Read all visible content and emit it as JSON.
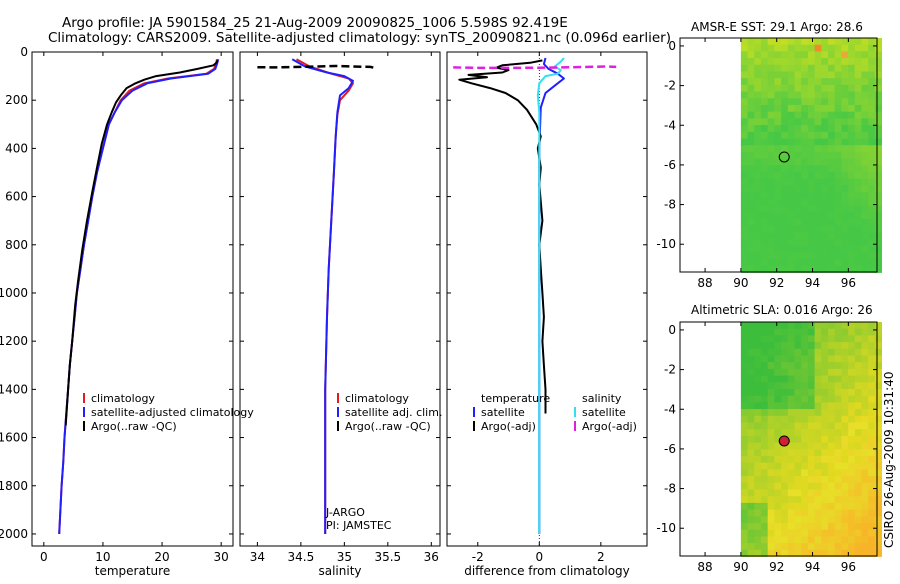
{
  "header": {
    "line1": "Argo profile: JA 5901584_25 21-Aug-2009 20090825_1006 5.598S 92.419E",
    "line2": "Climatology: CARS2009. Satellite-adjusted climatology: synTS_20090821.nc (0.096d earlier)"
  },
  "side_label": "CSIRO 26-Aug-2009 10:31:40",
  "colors": {
    "climatology": "#e41a1c",
    "satellite": "#1f1fff",
    "argo": "#000000",
    "sat_salinity": "#33e0f0",
    "argo_salinity": "#e020e0",
    "marker_fill": "#cc2233"
  },
  "chart_data": [
    {
      "id": "temperature",
      "type": "line",
      "xlabel": "temperature",
      "xlim": [
        -2,
        32
      ],
      "ylim": [
        0,
        2050
      ],
      "xticks": [
        0,
        10,
        20,
        30
      ],
      "xtick_labels": [
        "0",
        "10",
        "20",
        "30"
      ],
      "yticks": [
        0,
        200,
        400,
        600,
        800,
        1000,
        1200,
        1400,
        1600,
        1800,
        2000
      ],
      "ytick_labels": [
        "0",
        "200",
        "400",
        "600",
        "800",
        "1000",
        "1200",
        "1400",
        "1600",
        "1800",
        "2000"
      ],
      "legend": [
        "climatology",
        "satellite-adjusted climatology",
        "Argo(..raw -QC)"
      ],
      "series": [
        {
          "name": "climatology",
          "color": "#e41a1c",
          "dash": "",
          "points": [
            [
              29.3,
              30
            ],
            [
              29.1,
              50
            ],
            [
              28.8,
              70
            ],
            [
              27.5,
              90
            ],
            [
              21,
              110
            ],
            [
              17,
              130
            ],
            [
              14.5,
              160
            ],
            [
              13,
              200
            ],
            [
              12,
              250
            ],
            [
              11,
              300
            ],
            [
              10,
              400
            ],
            [
              9,
              500
            ],
            [
              8.2,
              600
            ],
            [
              7.5,
              700
            ],
            [
              6.8,
              800
            ],
            [
              6.2,
              900
            ],
            [
              5.6,
              1000
            ],
            [
              5.2,
              1100
            ],
            [
              4.8,
              1200
            ],
            [
              4.4,
              1300
            ],
            [
              4.1,
              1400
            ],
            [
              3.8,
              1500
            ],
            [
              3.5,
              1600
            ],
            [
              3.3,
              1700
            ],
            [
              3.0,
              1800
            ],
            [
              2.8,
              1900
            ],
            [
              2.6,
              2000
            ]
          ]
        },
        {
          "name": "satellite-adjusted climatology",
          "color": "#1f1fff",
          "dash": "",
          "points": [
            [
              29.5,
              30
            ],
            [
              29.3,
              50
            ],
            [
              29.0,
              70
            ],
            [
              27.8,
              90
            ],
            [
              21.5,
              110
            ],
            [
              17.5,
              130
            ],
            [
              15,
              160
            ],
            [
              13.2,
              200
            ],
            [
              12,
              250
            ],
            [
              11,
              300
            ],
            [
              10,
              400
            ],
            [
              9,
              500
            ],
            [
              8.2,
              600
            ],
            [
              7.5,
              700
            ],
            [
              6.8,
              800
            ],
            [
              6.2,
              900
            ],
            [
              5.6,
              1000
            ],
            [
              5.2,
              1100
            ],
            [
              4.8,
              1200
            ],
            [
              4.4,
              1300
            ],
            [
              4.1,
              1400
            ],
            [
              3.8,
              1500
            ],
            [
              3.5,
              1600
            ],
            [
              3.3,
              1700
            ],
            [
              3.0,
              1800
            ],
            [
              2.8,
              1900
            ],
            [
              2.6,
              2000
            ]
          ]
        },
        {
          "name": "Argo(..raw -QC)",
          "color": "#000000",
          "dash": "",
          "points": [
            [
              29.4,
              35
            ],
            [
              29.2,
              45
            ],
            [
              28.7,
              55
            ],
            [
              26,
              70
            ],
            [
              23,
              85
            ],
            [
              19,
              100
            ],
            [
              17,
              115
            ],
            [
              15.5,
              130
            ],
            [
              14,
              150
            ],
            [
              13,
              180
            ],
            [
              12.2,
              210
            ],
            [
              11.5,
              250
            ],
            [
              10.7,
              300
            ],
            [
              9.8,
              380
            ],
            [
              9.0,
              480
            ],
            [
              8.2,
              580
            ],
            [
              7.3,
              700
            ],
            [
              6.5,
              820
            ],
            [
              5.8,
              950
            ],
            [
              5.3,
              1050
            ],
            [
              4.8,
              1200
            ],
            [
              4.4,
              1300
            ],
            [
              4.1,
              1400
            ],
            [
              3.7,
              1550
            ]
          ]
        }
      ]
    },
    {
      "id": "salinity",
      "type": "line",
      "xlabel": "salinity",
      "xlim": [
        33.8,
        36.1
      ],
      "ylim": [
        0,
        2050
      ],
      "xticks": [
        34,
        34.5,
        35,
        35.5,
        36
      ],
      "xtick_labels": [
        "34",
        "34.5",
        "35",
        "35.5",
        "36"
      ],
      "legend": [
        "climatology",
        "satellite adj. clim.",
        "Argo(..raw -QC)"
      ],
      "annotations": [
        "J-ARGO",
        "PI: JAMSTEC"
      ],
      "series": [
        {
          "name": "climatology",
          "color": "#e41a1c",
          "dash": "",
          "points": [
            [
              34.45,
              30
            ],
            [
              34.6,
              60
            ],
            [
              34.85,
              90
            ],
            [
              35.05,
              110
            ],
            [
              35.1,
              130
            ],
            [
              35.05,
              160
            ],
            [
              34.95,
              200
            ],
            [
              34.92,
              260
            ],
            [
              34.9,
              350
            ],
            [
              34.88,
              500
            ],
            [
              34.85,
              700
            ],
            [
              34.82,
              900
            ],
            [
              34.8,
              1100
            ],
            [
              34.78,
              1400
            ],
            [
              34.78,
              1700
            ],
            [
              34.78,
              2000
            ]
          ]
        },
        {
          "name": "satellite adj. clim.",
          "color": "#1f1fff",
          "dash": "",
          "points": [
            [
              34.4,
              30
            ],
            [
              34.55,
              60
            ],
            [
              34.8,
              85
            ],
            [
              35.0,
              100
            ],
            [
              35.1,
              120
            ],
            [
              35.05,
              150
            ],
            [
              34.95,
              180
            ],
            [
              34.92,
              250
            ],
            [
              34.9,
              350
            ],
            [
              34.88,
              500
            ],
            [
              34.85,
              700
            ],
            [
              34.82,
              900
            ],
            [
              34.8,
              1100
            ],
            [
              34.78,
              1400
            ],
            [
              34.78,
              1700
            ],
            [
              34.78,
              2000
            ]
          ]
        },
        {
          "name": "Argo(..raw -QC)",
          "color": "#000000",
          "dash": "8,4",
          "points": [
            [
              34.0,
              63
            ],
            [
              34.2,
              64
            ],
            [
              34.5,
              62
            ],
            [
              34.7,
              60
            ],
            [
              34.9,
              58
            ],
            [
              35.1,
              60
            ],
            [
              35.3,
              62
            ],
            [
              35.35,
              66
            ]
          ]
        }
      ]
    },
    {
      "id": "difference",
      "type": "line",
      "xlabel": "difference from climatology",
      "xlim": [
        -3.0,
        3.5
      ],
      "ylim": [
        0,
        2050
      ],
      "xticks": [
        -2,
        0,
        2
      ],
      "xtick_labels": [
        "-2",
        "0",
        "2"
      ],
      "legend_headers": [
        "temperature",
        "salinity"
      ],
      "legend": [
        "satellite",
        "Argo(-adj)",
        "satellite",
        "Argo(-adj)"
      ],
      "series": [
        {
          "name": "temperature satellite",
          "color": "#1f1fff",
          "dash": "",
          "points": [
            [
              0.2,
              25
            ],
            [
              0.15,
              50
            ],
            [
              0.3,
              70
            ],
            [
              0.6,
              90
            ],
            [
              0.8,
              110
            ],
            [
              0.5,
              140
            ],
            [
              0.2,
              170
            ],
            [
              0.05,
              230
            ],
            [
              0,
              400
            ],
            [
              0,
              800
            ],
            [
              0,
              1200
            ],
            [
              0,
              1600
            ],
            [
              0,
              2000
            ]
          ]
        },
        {
          "name": "temperature Argo(-adj)",
          "color": "#000000",
          "dash": "",
          "points": [
            [
              0.1,
              35
            ],
            [
              -0.3,
              45
            ],
            [
              -1.2,
              55
            ],
            [
              -1.4,
              65
            ],
            [
              -1.0,
              75
            ],
            [
              -1.2,
              85
            ],
            [
              -2.3,
              95
            ],
            [
              -1.7,
              105
            ],
            [
              -2.6,
              115
            ],
            [
              -2.2,
              130
            ],
            [
              -1.6,
              150
            ],
            [
              -1.1,
              170
            ],
            [
              -0.7,
              200
            ],
            [
              -0.4,
              240
            ],
            [
              -0.1,
              300
            ],
            [
              0.05,
              350
            ],
            [
              -0.05,
              400
            ],
            [
              0.05,
              480
            ],
            [
              0,
              550
            ],
            [
              0.1,
              700
            ],
            [
              0,
              800
            ],
            [
              0.05,
              900
            ],
            [
              0.1,
              1000
            ],
            [
              0.15,
              1100
            ],
            [
              0.1,
              1200
            ],
            [
              0.15,
              1300
            ],
            [
              0.2,
              1400
            ],
            [
              0.2,
              1500
            ]
          ]
        },
        {
          "name": "salinity satellite",
          "color": "#33e0f0",
          "dash": "",
          "points": [
            [
              0.8,
              25
            ],
            [
              0.7,
              40
            ],
            [
              0.5,
              60
            ],
            [
              0.7,
              75
            ],
            [
              0.6,
              90
            ],
            [
              0.2,
              100
            ],
            [
              0,
              130
            ],
            [
              -0.05,
              180
            ],
            [
              0,
              250
            ],
            [
              0,
              500
            ],
            [
              0,
              1000
            ],
            [
              0,
              1500
            ],
            [
              0,
              2000
            ]
          ]
        },
        {
          "name": "salinity Argo(-adj)",
          "color": "#e020e0",
          "dash": "8,4",
          "points": [
            [
              -2.8,
              64
            ],
            [
              -2.0,
              66
            ],
            [
              -1.0,
              66
            ],
            [
              0,
              65
            ],
            [
              0.8,
              64
            ],
            [
              1.6,
              62
            ],
            [
              2.2,
              60
            ],
            [
              2.5,
              62
            ]
          ]
        }
      ]
    },
    {
      "id": "sst_map",
      "type": "heatmap",
      "title": "AMSR-E SST: 29.1 Argo: 28.6",
      "xlim": [
        86.6,
        97.6
      ],
      "ylim": [
        -11.4,
        0.4
      ],
      "xticks": [
        88,
        90,
        92,
        94,
        96
      ],
      "xtick_labels": [
        "88",
        "90",
        "92",
        "94",
        "96"
      ],
      "yticks": [
        0,
        -2,
        -4,
        -6,
        -8,
        -10
      ],
      "ytick_labels": [
        "0",
        "-2",
        "-4",
        "-6",
        "-8",
        "-10"
      ],
      "data_lon_min": 90,
      "marker": {
        "lon": 92.42,
        "lat": -5.6
      }
    },
    {
      "id": "sla_map",
      "type": "heatmap",
      "title": "Altimetric SLA: 0.016 Argo: 26",
      "xlim": [
        86.6,
        97.6
      ],
      "ylim": [
        -11.4,
        0.4
      ],
      "xticks": [
        88,
        90,
        92,
        94,
        96
      ],
      "xtick_labels": [
        "88",
        "90",
        "92",
        "94",
        "96"
      ],
      "yticks": [
        0,
        -2,
        -4,
        -6,
        -8,
        -10
      ],
      "ytick_labels": [
        "0",
        "-2",
        "-4",
        "-6",
        "-8",
        "-10"
      ],
      "data_lon_min": 90,
      "marker": {
        "lon": 92.42,
        "lat": -5.6
      }
    }
  ]
}
